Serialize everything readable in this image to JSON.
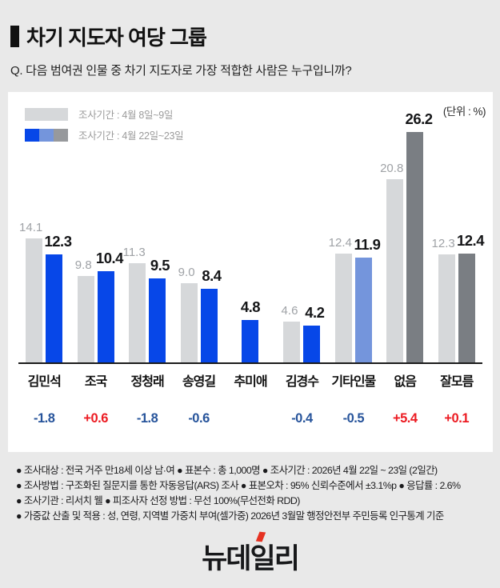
{
  "header": {
    "title": "차기 지도자 여당 그룹",
    "question": "Q. 다음 범여권 인물 중 차기 지도자로 가장 적합한 사람은 누구입니까?"
  },
  "chart_data": {
    "type": "bar",
    "title": "차기 지도자 여당 그룹",
    "unit_label": "(단위 : %)",
    "legend_position": "top-left",
    "grid": false,
    "ylim": [
      0,
      28
    ],
    "categories": [
      "김민석",
      "조국",
      "정청래",
      "송영길",
      "추미애",
      "김경수",
      "기타인물",
      "없음",
      "잘모름"
    ],
    "series": [
      {
        "name": "조사기간 : 4월 8일~9일",
        "color": "#d6d8da",
        "values": [
          14.1,
          9.8,
          11.3,
          9.0,
          null,
          4.6,
          12.4,
          20.8,
          12.3
        ]
      },
      {
        "name": "조사기간 : 4월 22일~23일",
        "colors": [
          "#0747e8",
          "#0747e8",
          "#0747e8",
          "#0747e8",
          "#0747e8",
          "#0747e8",
          "#7495dc",
          "#7a7e83",
          "#7a7e83"
        ],
        "values": [
          12.3,
          10.4,
          9.5,
          8.4,
          4.8,
          4.2,
          11.9,
          26.2,
          12.4
        ]
      }
    ],
    "legend_swatch2_colors": [
      "#0747e8",
      "#7495dc",
      "#97999c"
    ],
    "changes": [
      {
        "text": "-1.8",
        "dir": "down"
      },
      {
        "text": "+0.6",
        "dir": "up"
      },
      {
        "text": "-1.8",
        "dir": "down"
      },
      {
        "text": "-0.6",
        "dir": "down"
      },
      {
        "text": "",
        "dir": ""
      },
      {
        "text": "-0.4",
        "dir": "down"
      },
      {
        "text": "-0.5",
        "dir": "down"
      },
      {
        "text": "+5.4",
        "dir": "up"
      },
      {
        "text": "+0.1",
        "dir": "up"
      }
    ]
  },
  "colors": {
    "page_bg": "#e9e9e9",
    "card_bg": "#ffffff",
    "wave1_value_label": "#9fa2a6",
    "wave2_value_label": "#151618",
    "negative_change": "#27549b",
    "positive_change": "#ec1b22",
    "axis": "#1c1c1c",
    "logo_accent": "#e63222"
  },
  "footer": {
    "notes": [
      "●  조사대상 : 전국 거주 만18세 이상 남·여  ●  표본수 : 총 1,000명  ●  조사기간 : 2026년 4월 22일 ~ 23일 (2일간)",
      "●  조사방법 : 구조화된 질문지를 통한 자동응답(ARS) 조사  ●  표본오차 : 95% 신뢰수준에서 ±3.1%p  ●  응답률 : 2.6%",
      "●  조사기관 : 리서치 웰  ●  피조사자 선정 방법 : 무선 100%(무선전화 RDD)",
      "●  가중값 산출 및 적용 : 성, 연령, 지역별 가중치 부여(셀가중) 2026년 3월말 행정안전부 주민등록 인구통계 기준"
    ],
    "logo_text": "뉴데일리"
  }
}
